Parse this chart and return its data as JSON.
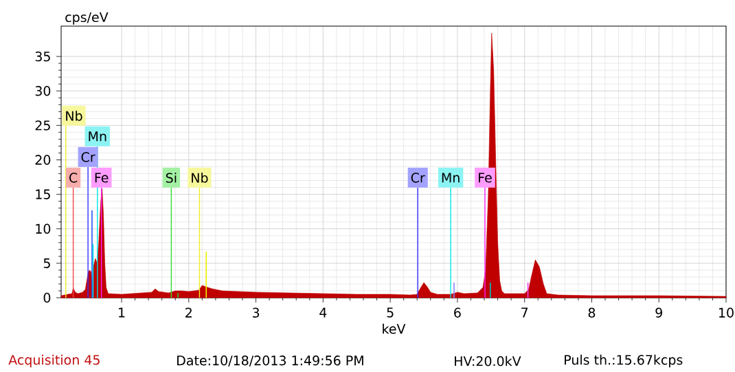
{
  "chart_data": {
    "type": "area",
    "xlabel": "keV",
    "ylabel": "cps/eV",
    "xlim": [
      0.1,
      10
    ],
    "ylim": [
      0,
      39.4
    ],
    "xticks": [
      1,
      2,
      3,
      4,
      5,
      6,
      7,
      8,
      9,
      10
    ],
    "yticks": [
      0,
      5,
      10,
      15,
      20,
      25,
      30,
      35
    ],
    "grid": true,
    "marker": "none",
    "series": [
      {
        "color": "#c00000",
        "x": [
          0.1,
          0.2,
          0.26,
          0.28,
          0.31,
          0.35,
          0.42,
          0.46,
          0.5,
          0.52,
          0.545,
          0.56,
          0.58,
          0.61,
          0.635,
          0.66,
          0.69,
          0.71,
          0.73,
          0.75,
          0.77,
          0.8,
          1.0,
          1.3,
          1.45,
          1.5,
          1.55,
          1.7,
          1.8,
          1.9,
          2.0,
          2.15,
          2.2,
          2.25,
          2.35,
          2.5,
          3.0,
          3.5,
          4.0,
          4.5,
          5.0,
          5.3,
          5.4,
          5.45,
          5.5,
          5.55,
          5.6,
          5.7,
          5.9,
          6.0,
          6.1,
          6.3,
          6.38,
          6.42,
          6.46,
          6.49,
          6.51,
          6.54,
          6.57,
          6.6,
          6.63,
          6.66,
          6.7,
          7.0,
          7.06,
          7.1,
          7.16,
          7.22,
          7.28,
          7.33,
          7.5,
          8.0,
          9.0,
          10.0
        ],
        "values": [
          0.3,
          0.5,
          0.6,
          1.4,
          0.8,
          0.6,
          0.8,
          1.2,
          3.5,
          4.0,
          3.8,
          2.0,
          4.5,
          5.7,
          5.0,
          8,
          14,
          15.8,
          12,
          5,
          1.5,
          0.6,
          0.5,
          0.7,
          0.8,
          1.3,
          0.9,
          0.7,
          1.0,
          1.0,
          0.9,
          1.1,
          1.8,
          1.6,
          1.3,
          1.0,
          0.8,
          0.7,
          0.6,
          0.5,
          0.5,
          0.4,
          0.5,
          1.4,
          2.2,
          1.6,
          0.8,
          0.5,
          0.5,
          0.8,
          0.6,
          0.7,
          1.5,
          4,
          15,
          30,
          38.4,
          33,
          20,
          8,
          2.5,
          1.0,
          0.6,
          0.6,
          1.2,
          3.0,
          5.5,
          4.5,
          2.0,
          0.6,
          0.4,
          0.3,
          0.3,
          0.2
        ]
      },
      {
        "type": "bar",
        "x": [
          0.56,
          0.575,
          0.69,
          1.84,
          2.26,
          5.95,
          6.49,
          7.05
        ],
        "values": [
          12.7,
          7.8,
          null,
          0.7,
          6.7,
          2.2,
          2.2,
          2.2
        ],
        "colors": [
          "#2255ff",
          "#00e0e0",
          "#ff33ff",
          "#33cc33",
          "#eeee00",
          "#8888ff",
          "#00c0c0",
          "#ee44ee"
        ]
      }
    ],
    "ref_lines": [
      {
        "axis": "x",
        "value": 0.28,
        "label": "C",
        "color": "#f04848"
      },
      {
        "axis": "x",
        "value": 0.7,
        "label": "Fe",
        "color": "#ff22ff"
      },
      {
        "axis": "x",
        "value": 0.5,
        "label": "Cr",
        "color": "#3333ff"
      },
      {
        "axis": "x",
        "value": 0.64,
        "label": "Mn",
        "color": "#00e5e5"
      },
      {
        "axis": "x",
        "value": 0.17,
        "label": "Nb",
        "color": "#eeee22"
      },
      {
        "axis": "x",
        "value": 1.74,
        "label": "Si",
        "color": "#33dd33"
      },
      {
        "axis": "x",
        "value": 2.16,
        "label": "Nb",
        "color": "#eeee22"
      },
      {
        "axis": "x",
        "value": 5.41,
        "label": "Cr",
        "color": "#3333ff"
      },
      {
        "axis": "x",
        "value": 5.9,
        "label": "Mn",
        "color": "#00e5e5"
      },
      {
        "axis": "x",
        "value": 6.41,
        "label": "Fe",
        "color": "#ff22ff"
      }
    ],
    "annotations": [
      "Acquisition 45",
      "Date:10/18/2013 1:49:56 PM",
      "HV:20.0kV",
      "Puls th.:15.67kcps"
    ]
  }
}
